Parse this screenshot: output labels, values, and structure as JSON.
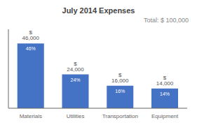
{
  "chart_data": {
    "type": "bar",
    "title": "July 2014 Expenses",
    "annotation": "Total: $ 100,000",
    "categories": [
      "Materials",
      "Utilities",
      "Transportation",
      "Equipment"
    ],
    "values": [
      46000,
      24000,
      16000,
      14000
    ],
    "value_labels": [
      "$ 46,000",
      "$ 24,000",
      "$ 16,000",
      "$ 14,000"
    ],
    "percentage_labels": [
      "46%",
      "24%",
      "16%",
      "14%"
    ],
    "color": "#4472C4",
    "ylim": [
      0,
      56000
    ],
    "yticks": [],
    "grid": false,
    "data_labels": true,
    "tick_labels": "x"
  }
}
